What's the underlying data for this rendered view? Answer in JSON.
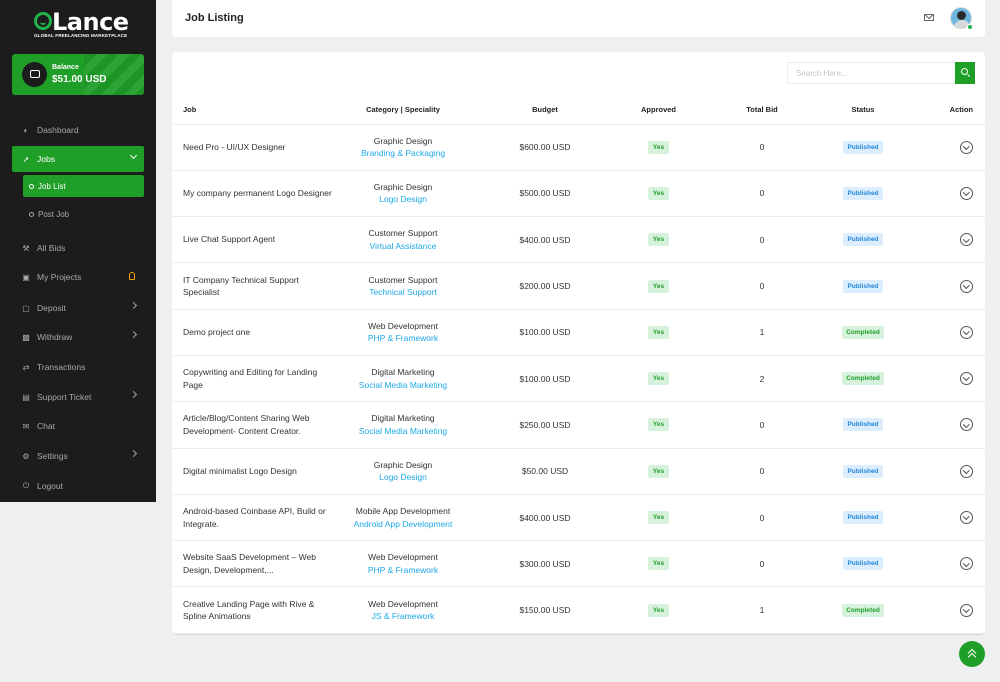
{
  "logo": {
    "text": "Lance",
    "tagline": "GLOBAL FREELANCING MARKETPLACE"
  },
  "balance": {
    "label": "Balance",
    "value": "$51.00 USD"
  },
  "sidebar": {
    "items": [
      {
        "label": "Dashboard",
        "icon": "dashboard-icon"
      },
      {
        "label": "Jobs",
        "icon": "rocket-icon"
      },
      {
        "label": "All Bids",
        "icon": "gavel-icon"
      },
      {
        "label": "My Projects",
        "icon": "briefcase-icon"
      },
      {
        "label": "Deposit",
        "icon": "deposit-icon"
      },
      {
        "label": "Withdraw",
        "icon": "withdraw-icon"
      },
      {
        "label": "Transactions",
        "icon": "exchange-icon"
      },
      {
        "label": "Support Ticket",
        "icon": "ticket-icon"
      },
      {
        "label": "Chat",
        "icon": "chat-icon"
      },
      {
        "label": "Settings",
        "icon": "gear-icon"
      },
      {
        "label": "Logout",
        "icon": "logout-icon"
      }
    ],
    "sub_items": [
      {
        "label": "Job List"
      },
      {
        "label": "Post Job"
      }
    ]
  },
  "header": {
    "title": "Job Listing"
  },
  "search": {
    "placeholder": "Search Here..."
  },
  "table": {
    "headers": [
      "Job",
      "Category | Speciality",
      "Budget",
      "Approved",
      "Total Bid",
      "Status",
      "Action"
    ],
    "rows": [
      {
        "job": "Need Pro - UI/UX Designer",
        "category": "Graphic Design",
        "speciality": "Branding & Packaging",
        "budget": "$600.00 USD",
        "approved": "Yes",
        "bids": "0",
        "status": "Published"
      },
      {
        "job": "My company permanent Logo Designer",
        "category": "Graphic Design",
        "speciality": "Logo Design",
        "budget": "$500.00 USD",
        "approved": "Yes",
        "bids": "0",
        "status": "Published"
      },
      {
        "job": "Live Chat Support Agent",
        "category": "Customer Support",
        "speciality": "Virtual Assistance",
        "budget": "$400.00 USD",
        "approved": "Yes",
        "bids": "0",
        "status": "Published"
      },
      {
        "job": "IT Company Technical Support Specialist",
        "category": "Customer Support",
        "speciality": "Technical Support",
        "budget": "$200.00 USD",
        "approved": "Yes",
        "bids": "0",
        "status": "Published"
      },
      {
        "job": "Demo project one",
        "category": "Web Development",
        "speciality": "PHP & Framework",
        "budget": "$100.00 USD",
        "approved": "Yes",
        "bids": "1",
        "status": "Completed"
      },
      {
        "job": "Copywriting and Editing for Landing Page",
        "category": "Digital Marketing",
        "speciality": "Social Media Marketing",
        "budget": "$100.00 USD",
        "approved": "Yes",
        "bids": "2",
        "status": "Completed"
      },
      {
        "job": "Article/Blog/Content Sharing Web Development- Content Creator.",
        "category": "Digital Marketing",
        "speciality": "Social Media Marketing",
        "budget": "$250.00 USD",
        "approved": "Yes",
        "bids": "0",
        "status": "Published"
      },
      {
        "job": "Digital minimalist Logo Design",
        "category": "Graphic Design",
        "speciality": "Logo Design",
        "budget": "$50.00 USD",
        "approved": "Yes",
        "bids": "0",
        "status": "Published"
      },
      {
        "job": "Android-based Coinbase API, Build or Integrate.",
        "category": "Mobile App Development",
        "speciality": "Android App Development",
        "budget": "$400.00 USD",
        "approved": "Yes",
        "bids": "0",
        "status": "Published"
      },
      {
        "job": "Website SaaS Development – Web Design, Development,...",
        "category": "Web Development",
        "speciality": "PHP & Framework",
        "budget": "$300.00 USD",
        "approved": "Yes",
        "bids": "0",
        "status": "Published"
      },
      {
        "job": "Creative Landing Page with Rive & Spline Animations",
        "category": "Web Development",
        "speciality": "JS & Framework",
        "budget": "$150.00 USD",
        "approved": "Yes",
        "bids": "1",
        "status": "Completed"
      }
    ]
  },
  "colors": {
    "accent": "#1f9e28",
    "sidebar_bg": "#1c1c1c",
    "link": "#1ea8e7",
    "published": "#2487d8"
  }
}
